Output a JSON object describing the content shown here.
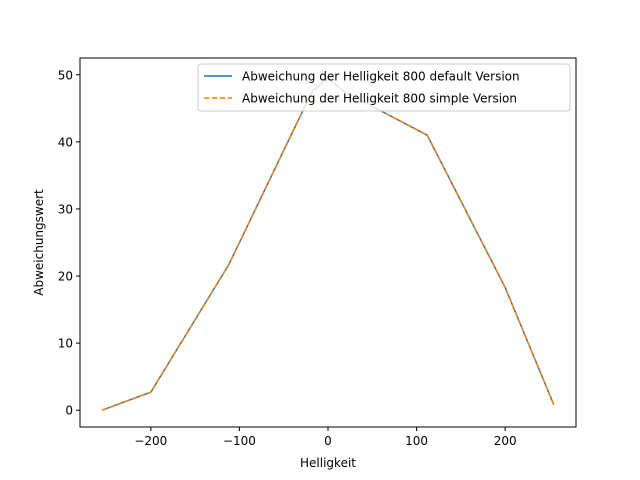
{
  "chart_data": {
    "type": "line",
    "title": "",
    "xlabel": "Helligkeit",
    "ylabel": "Abweichungswert",
    "xlim": [
      -280,
      280
    ],
    "ylim": [
      -2.5,
      52.5
    ],
    "xticks": [
      -200,
      -100,
      0,
      100,
      200
    ],
    "yticks": [
      0,
      10,
      20,
      30,
      40,
      50
    ],
    "legend_position": "top-right",
    "series": [
      {
        "name": "Abweichung der Helligkeit 800 default Version",
        "color": "#1f77b4",
        "style": "solid",
        "x": [
          -255,
          -200,
          -112,
          -18,
          0,
          18,
          112,
          200,
          255
        ],
        "y": [
          0,
          2.7,
          21.7,
          47.5,
          49.5,
          47.5,
          41.0,
          18.3,
          0.8
        ]
      },
      {
        "name": "Abweichung der Helligkeit 800 simple Version",
        "color": "#ff7f0e",
        "style": "dashed",
        "x": [
          -255,
          -200,
          -112,
          -18,
          0,
          18,
          112,
          200,
          255
        ],
        "y": [
          0,
          2.7,
          21.7,
          47.5,
          49.5,
          47.5,
          41.0,
          18.3,
          0.8
        ]
      }
    ]
  }
}
